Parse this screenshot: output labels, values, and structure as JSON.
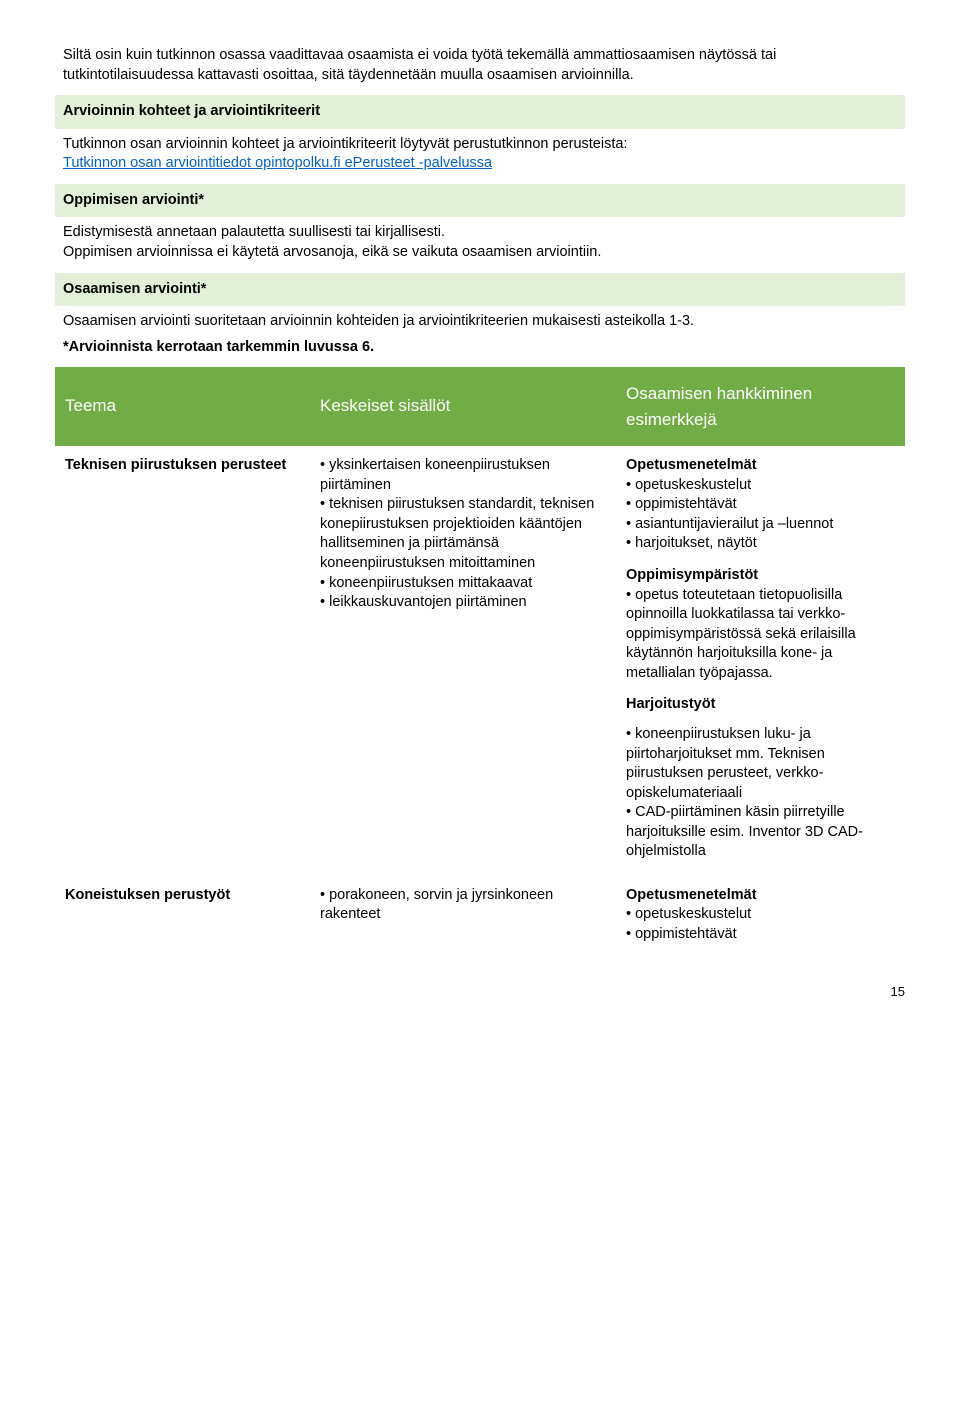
{
  "colors": {
    "page_bg": "#ffffff",
    "text": "#000000",
    "link": "#0563c1",
    "green_light": "#e2efd9",
    "green_header": "#70ad47",
    "header_text": "#ffffff"
  },
  "typography": {
    "body_font": "Arial",
    "body_size_pt": 11,
    "header_size_pt": 13
  },
  "intro_text": "Siltä osin kuin tutkinnon osassa vaadittavaa osaamista ei voida työtä tekemällä ammattiosaamisen näytössä tai tutkintotilaisuudessa kattavasti osoittaa, sitä täydennetään muulla osaamisen arvioinnilla.",
  "section_arviointi": {
    "title": "Arvioinnin kohteet ja arviointikriteerit",
    "body_prefix": "Tutkinnon osan arvioinnin kohteet ja arviointikriteerit löytyvät perustutkinnon perusteista:",
    "link_text": "Tutkinnon osan arviointitiedot opintopolku.fi ePerusteet -palvelussa"
  },
  "section_oppimisen": {
    "title": "Oppimisen arviointi*",
    "body": "Edistymisestä annetaan palautetta suullisesti tai kirjallisesti.\nOppimisen arvioinnissa ei käytetä arvosanoja, eikä se vaikuta osaamisen arviointiin."
  },
  "section_osaamisen": {
    "title": "Osaamisen arviointi*",
    "body": "Osaamisen arviointi suoritetaan arvioinnin kohteiden ja arviointikriteerien mukaisesti asteikolla 1-3.",
    "note": "*Arvioinnista kerrotaan tarkemmin luvussa 6."
  },
  "theme_table": {
    "type": "table",
    "columns": [
      "Teema",
      "Keskeiset sisällöt",
      "Osaamisen hankkiminen esimerkkejä"
    ],
    "column_widths_pct": [
      30,
      36,
      34
    ],
    "rows": [
      {
        "teema": "Teknisen piirustuksen perusteet",
        "keskeiset": [
          "yksinkertaisen koneenpiirustuksen piirtäminen",
          "teknisen piirustuksen standardit, teknisen konepiirustuksen projektioiden kääntöjen hallitseminen ja piirtämänsä koneenpiirustuksen mitoittaminen",
          "koneenpiirustuksen mittakaavat",
          "leikkauskuvantojen piirtäminen"
        ],
        "osaaminen": {
          "opetusmenetelmat_label": "Opetusmenetelmät",
          "opetusmenetelmat": [
            "opetuskeskustelut",
            "oppimistehtävät",
            "asiantuntijavierailut ja –luennot",
            "harjoitukset, näytöt"
          ],
          "oppimisymparistot_label": "Oppimisympäristöt",
          "oppimisymparistot": [
            "opetus toteutetaan tietopuolisilla opinnoilla luokkatilassa tai verkko-oppimisympäristössä sekä erilaisilla käytännön harjoituksilla kone- ja metallialan työpajassa."
          ],
          "harjoitustyot_label": "Harjoitustyöt",
          "harjoitustyot": [
            "koneenpiirustuksen luku- ja piirtoharjoitukset mm. Teknisen piirustuksen perusteet, verkko-opiskelumateriaali",
            "CAD-piirtäminen käsin piirretyille harjoituksille esim. Inventor 3D CAD-ohjelmistolla"
          ]
        }
      },
      {
        "teema": "Koneistuksen perustyöt",
        "keskeiset": [
          "porakoneen, sorvin ja jyrsinkoneen rakenteet"
        ],
        "osaaminen": {
          "opetusmenetelmat_label": "Opetusmenetelmät",
          "opetusmenetelmat": [
            "opetuskeskustelut",
            "oppimistehtävät"
          ]
        }
      }
    ]
  },
  "page_number": "15"
}
